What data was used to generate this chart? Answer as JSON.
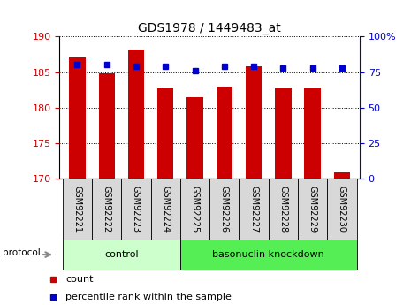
{
  "title": "GDS1978 / 1449483_at",
  "samples": [
    "GSM92221",
    "GSM92222",
    "GSM92223",
    "GSM92224",
    "GSM92225",
    "GSM92226",
    "GSM92227",
    "GSM92228",
    "GSM92229",
    "GSM92230"
  ],
  "counts": [
    187.0,
    184.8,
    188.2,
    182.7,
    181.5,
    182.9,
    185.8,
    182.8,
    182.8,
    170.8
  ],
  "percentile_ranks": [
    80,
    80,
    79,
    79,
    76,
    79,
    79,
    78,
    78,
    78
  ],
  "ylim_left": [
    170,
    190
  ],
  "ylim_right": [
    0,
    100
  ],
  "yticks_left": [
    170,
    175,
    180,
    185,
    190
  ],
  "yticks_right": [
    0,
    25,
    50,
    75,
    100
  ],
  "ytick_labels_right": [
    "0",
    "25",
    "50",
    "75",
    "100%"
  ],
  "bar_color": "#cc0000",
  "dot_color": "#0000cc",
  "control_label": "control",
  "knockdown_label": "basonuclin knockdown",
  "protocol_label": "protocol",
  "control_color": "#ccffcc",
  "knockdown_color": "#55ee55",
  "legend_count_label": "count",
  "legend_pct_label": "percentile rank within the sample",
  "bar_width": 0.55,
  "left_tick_color": "#cc0000",
  "right_tick_color": "#0000cc",
  "xtick_bg_color": "#d8d8d8",
  "n_control": 4,
  "n_total": 10
}
